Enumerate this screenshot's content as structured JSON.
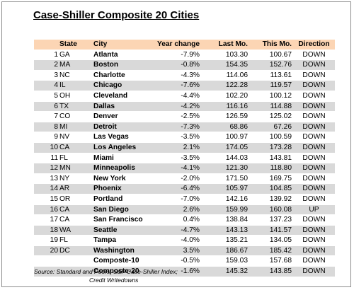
{
  "title": "Case-Shiller Composite 20 Cities",
  "headers": {
    "num": "",
    "state": "State",
    "city": "City",
    "year_change": "Year change",
    "last_mo": "Last Mo.",
    "this_mo": "This Mo.",
    "direction": "Direction"
  },
  "rows": [
    {
      "num": "1",
      "state": "GA",
      "city": "Atlanta",
      "year_change": "-7.9%",
      "last_mo": "103.30",
      "this_mo": "100.67",
      "direction": "DOWN"
    },
    {
      "num": "2",
      "state": "MA",
      "city": "Boston",
      "year_change": "-0.8%",
      "last_mo": "154.35",
      "this_mo": "152.76",
      "direction": "DOWN"
    },
    {
      "num": "3",
      "state": "NC",
      "city": "Charlotte",
      "year_change": "-4.3%",
      "last_mo": "114.06",
      "this_mo": "113.61",
      "direction": "DOWN"
    },
    {
      "num": "4",
      "state": "IL",
      "city": "Chicago",
      "year_change": "-7.6%",
      "last_mo": "122.28",
      "this_mo": "119.57",
      "direction": "DOWN"
    },
    {
      "num": "5",
      "state": "OH",
      "city": "Cleveland",
      "year_change": "-4.4%",
      "last_mo": "102.20",
      "this_mo": "100.12",
      "direction": "DOWN"
    },
    {
      "num": "6",
      "state": "TX",
      "city": "Dallas",
      "year_change": "-4.2%",
      "last_mo": "116.16",
      "this_mo": "114.88",
      "direction": "DOWN"
    },
    {
      "num": "7",
      "state": "CO",
      "city": "Denver",
      "year_change": "-2.5%",
      "last_mo": "126.59",
      "this_mo": "125.02",
      "direction": "DOWN"
    },
    {
      "num": "8",
      "state": "MI",
      "city": "Detroit",
      "year_change": "-7.3%",
      "last_mo": "68.86",
      "this_mo": "67.26",
      "direction": "DOWN"
    },
    {
      "num": "9",
      "state": "NV",
      "city": "Las Vegas",
      "year_change": "-3.5%",
      "last_mo": "100.97",
      "this_mo": "100.59",
      "direction": "DOWN"
    },
    {
      "num": "10",
      "state": "CA",
      "city": "Los Angeles",
      "year_change": "2.1%",
      "last_mo": "174.05",
      "this_mo": "173.28",
      "direction": "DOWN"
    },
    {
      "num": "11",
      "state": "FL",
      "city": "Miami",
      "year_change": "-3.5%",
      "last_mo": "144.03",
      "this_mo": "143.81",
      "direction": "DOWN"
    },
    {
      "num": "12",
      "state": "MN",
      "city": "Minneapolis",
      "year_change": "-4.1%",
      "last_mo": "121.30",
      "this_mo": "118.80",
      "direction": "DOWN"
    },
    {
      "num": "13",
      "state": "NY",
      "city": "New York",
      "year_change": "-2.0%",
      "last_mo": "171.50",
      "this_mo": "169.75",
      "direction": "DOWN"
    },
    {
      "num": "14",
      "state": "AR",
      "city": "Phoenix",
      "year_change": "-6.4%",
      "last_mo": "105.97",
      "this_mo": "104.85",
      "direction": "DOWN"
    },
    {
      "num": "15",
      "state": "OR",
      "city": "Portland",
      "year_change": "-7.0%",
      "last_mo": "142.16",
      "this_mo": "139.92",
      "direction": "DOWN"
    },
    {
      "num": "16",
      "state": "CA",
      "city": "San Diego",
      "year_change": "2.6%",
      "last_mo": "159.99",
      "this_mo": "160.08",
      "direction": "UP"
    },
    {
      "num": "17",
      "state": "CA",
      "city": "San Francisco",
      "year_change": "0.4%",
      "last_mo": "138.84",
      "this_mo": "137.23",
      "direction": "DOWN"
    },
    {
      "num": "18",
      "state": "WA",
      "city": "Seattle",
      "year_change": "-4.7%",
      "last_mo": "143.13",
      "this_mo": "141.57",
      "direction": "DOWN"
    },
    {
      "num": "19",
      "state": "FL",
      "city": "Tampa",
      "year_change": "-4.0%",
      "last_mo": "135.21",
      "this_mo": "134.05",
      "direction": "DOWN"
    },
    {
      "num": "20",
      "state": "DC",
      "city": "Washington",
      "year_change": "3.5%",
      "last_mo": "186.67",
      "this_mo": "185.42",
      "direction": "DOWN"
    },
    {
      "num": "",
      "state": "",
      "city": "Composte-10",
      "year_change": "-0.5%",
      "last_mo": "159.03",
      "this_mo": "157.68",
      "direction": "DOWN"
    },
    {
      "num": "",
      "state": "",
      "city": "Composte-20",
      "year_change": "-1.6%",
      "last_mo": "145.32",
      "this_mo": "143.85",
      "direction": "DOWN"
    }
  ],
  "source_line1": "Source: Standard and Poors; S&P Case-Shiller Index;",
  "source_line2": "Credit Writedowns",
  "colors": {
    "header_bg": "#fcd5b4",
    "row_alt_bg": "#d9d9d9"
  }
}
